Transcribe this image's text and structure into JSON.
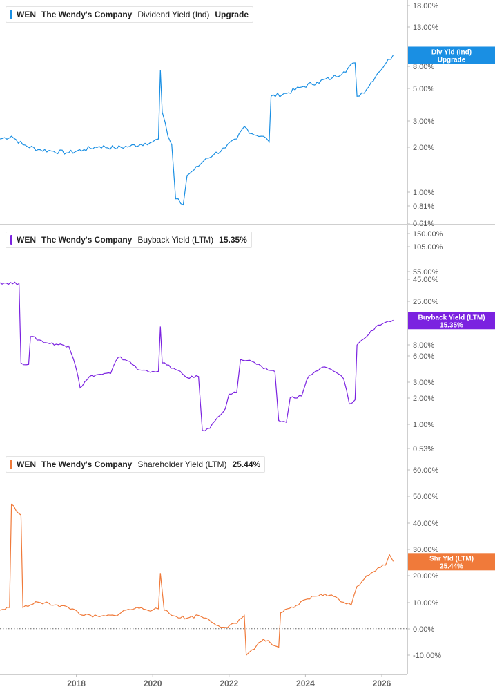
{
  "x_axis": {
    "tick_labels": [
      "2018",
      "2020",
      "2022",
      "2024",
      "2026"
    ]
  },
  "chart_data": [
    {
      "type": "line",
      "scale": "log",
      "color": "#1a8fe3",
      "legend": {
        "ticker": "WEN",
        "company": "The Wendy's Company",
        "metric": "Dividend Yield (Ind)",
        "value": "Upgrade"
      },
      "callout": {
        "line1": "Div Yld (Ind)",
        "line2": "Upgrade"
      },
      "y_ticks": [
        "18.00%",
        "13.00%",
        "8.00%",
        "5.00%",
        "3.00%",
        "2.00%",
        "1.00%",
        "0.81%",
        "0.61%"
      ],
      "series": [
        {
          "points": [
            [
              2016.0,
              2.3
            ],
            [
              2016.3,
              2.4
            ],
            [
              2016.6,
              2.1
            ],
            [
              2017.0,
              1.95
            ],
            [
              2017.4,
              1.9
            ],
            [
              2017.8,
              1.85
            ],
            [
              2018.2,
              1.95
            ],
            [
              2018.6,
              2.05
            ],
            [
              2019.0,
              2.0
            ],
            [
              2019.4,
              2.05
            ],
            [
              2019.8,
              2.15
            ],
            [
              2020.0,
              2.2
            ],
            [
              2020.15,
              2.3
            ],
            [
              2020.2,
              6.8
            ],
            [
              2020.25,
              3.5
            ],
            [
              2020.4,
              2.4
            ],
            [
              2020.5,
              2.1
            ],
            [
              2020.6,
              0.9
            ],
            [
              2020.8,
              0.82
            ],
            [
              2020.9,
              1.3
            ],
            [
              2021.2,
              1.5
            ],
            [
              2021.4,
              1.7
            ],
            [
              2021.6,
              1.8
            ],
            [
              2021.9,
              2.0
            ],
            [
              2022.2,
              2.3
            ],
            [
              2022.4,
              2.8
            ],
            [
              2022.6,
              2.5
            ],
            [
              2022.9,
              2.4
            ],
            [
              2023.05,
              2.2
            ],
            [
              2023.1,
              4.5
            ],
            [
              2023.5,
              4.7
            ],
            [
              2023.9,
              5.2
            ],
            [
              2024.3,
              5.6
            ],
            [
              2024.7,
              6.0
            ],
            [
              2025.0,
              6.6
            ],
            [
              2025.3,
              7.6
            ],
            [
              2025.35,
              4.5
            ],
            [
              2025.6,
              5.0
            ],
            [
              2025.9,
              6.5
            ],
            [
              2026.1,
              7.5
            ],
            [
              2026.3,
              8.6
            ]
          ]
        }
      ]
    },
    {
      "type": "line",
      "scale": "log",
      "color": "#7b22e0",
      "legend": {
        "ticker": "WEN",
        "company": "The Wendy's Company",
        "metric": "Buyback Yield (LTM)",
        "value": "15.35%"
      },
      "callout": {
        "line1": "Buyback Yield (LTM)",
        "line2": "15.35%"
      },
      "y_ticks": [
        "150.00%",
        "105.00%",
        "55.00%",
        "45.00%",
        "25.00%",
        "8.00%",
        "6.00%",
        "3.00%",
        "2.00%",
        "1.00%",
        "0.53%"
      ],
      "series": [
        {
          "points": [
            [
              2016.0,
              41
            ],
            [
              2016.5,
              40
            ],
            [
              2016.55,
              5.0
            ],
            [
              2016.75,
              4.8
            ],
            [
              2016.8,
              10
            ],
            [
              2017.2,
              8.5
            ],
            [
              2017.8,
              7.8
            ],
            [
              2018.1,
              2.6
            ],
            [
              2018.4,
              3.6
            ],
            [
              2018.9,
              3.8
            ],
            [
              2019.1,
              5.8
            ],
            [
              2019.4,
              5.2
            ],
            [
              2019.6,
              4.2
            ],
            [
              2020.0,
              4.0
            ],
            [
              2020.15,
              4.0
            ],
            [
              2020.2,
              13.0
            ],
            [
              2020.25,
              5.0
            ],
            [
              2020.6,
              4.2
            ],
            [
              2020.9,
              3.4
            ],
            [
              2021.2,
              3.5
            ],
            [
              2021.3,
              0.85
            ],
            [
              2021.5,
              0.9
            ],
            [
              2021.7,
              1.2
            ],
            [
              2021.9,
              1.5
            ],
            [
              2022.0,
              2.2
            ],
            [
              2022.2,
              2.3
            ],
            [
              2022.3,
              5.5
            ],
            [
              2022.6,
              5.2
            ],
            [
              2022.9,
              4.3
            ],
            [
              2023.2,
              4.0
            ],
            [
              2023.3,
              1.1
            ],
            [
              2023.5,
              1.05
            ],
            [
              2023.6,
              2.0
            ],
            [
              2023.9,
              2.1
            ],
            [
              2024.1,
              3.6
            ],
            [
              2024.5,
              4.5
            ],
            [
              2024.8,
              3.9
            ],
            [
              2025.0,
              3.3
            ],
            [
              2025.15,
              1.7
            ],
            [
              2025.3,
              1.9
            ],
            [
              2025.35,
              8.0
            ],
            [
              2025.6,
              10
            ],
            [
              2025.9,
              13.5
            ],
            [
              2026.1,
              14.5
            ],
            [
              2026.3,
              15.35
            ]
          ]
        }
      ]
    },
    {
      "type": "line",
      "scale": "linear",
      "color": "#f07a3a",
      "legend": {
        "ticker": "WEN",
        "company": "The Wendy's Company",
        "metric": "Shareholder Yield (LTM)",
        "value": "25.44%"
      },
      "callout": {
        "line1": "Shr Yld (LTM)",
        "line2": "25.44%"
      },
      "y_ticks": [
        "60.00%",
        "50.00%",
        "40.00%",
        "30.00%",
        "20.00%",
        "10.00%",
        "0.00%",
        "-10.00%"
      ],
      "ylim": [
        -13,
        67
      ],
      "zero_line": true,
      "series": [
        {
          "points": [
            [
              2016.0,
              7
            ],
            [
              2016.25,
              8
            ],
            [
              2016.3,
              47
            ],
            [
              2016.55,
              43
            ],
            [
              2016.6,
              8
            ],
            [
              2016.8,
              9
            ],
            [
              2017.0,
              10
            ],
            [
              2017.5,
              9
            ],
            [
              2017.9,
              7.5
            ],
            [
              2018.2,
              5
            ],
            [
              2018.6,
              4.5
            ],
            [
              2019.0,
              5
            ],
            [
              2019.3,
              7
            ],
            [
              2019.7,
              8
            ],
            [
              2020.0,
              7
            ],
            [
              2020.15,
              7.5
            ],
            [
              2020.2,
              21
            ],
            [
              2020.3,
              7
            ],
            [
              2020.5,
              5
            ],
            [
              2020.9,
              4
            ],
            [
              2021.2,
              5
            ],
            [
              2021.4,
              4
            ],
            [
              2021.6,
              2
            ],
            [
              2021.9,
              0.5
            ],
            [
              2022.2,
              2
            ],
            [
              2022.4,
              5
            ],
            [
              2022.45,
              -10
            ],
            [
              2022.6,
              -8
            ],
            [
              2022.9,
              -4
            ],
            [
              2023.2,
              -6.5
            ],
            [
              2023.3,
              -7
            ],
            [
              2023.35,
              6
            ],
            [
              2023.7,
              8
            ],
            [
              2024.0,
              11
            ],
            [
              2024.4,
              13
            ],
            [
              2024.8,
              12
            ],
            [
              2025.0,
              10
            ],
            [
              2025.2,
              9
            ],
            [
              2025.35,
              16
            ],
            [
              2025.6,
              20
            ],
            [
              2025.9,
              23
            ],
            [
              2026.1,
              24
            ],
            [
              2026.2,
              28
            ],
            [
              2026.3,
              25.44
            ]
          ]
        }
      ]
    }
  ]
}
